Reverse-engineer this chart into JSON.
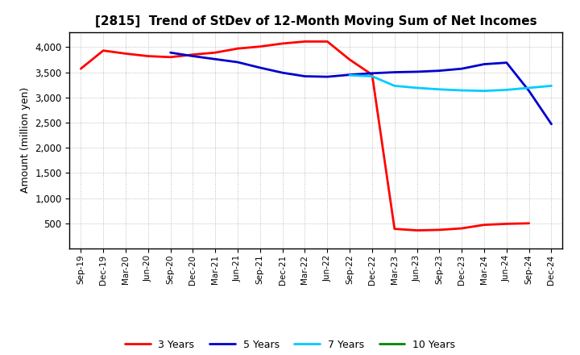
{
  "title": "[2815]  Trend of StDev of 12-Month Moving Sum of Net Incomes",
  "ylabel": "Amount (million yen)",
  "background_color": "#ffffff",
  "grid_color": "#999999",
  "x_labels": [
    "Sep-19",
    "Dec-19",
    "Mar-20",
    "Jun-20",
    "Sep-20",
    "Dec-20",
    "Mar-21",
    "Jun-21",
    "Sep-21",
    "Dec-21",
    "Mar-22",
    "Jun-22",
    "Sep-22",
    "Dec-22",
    "Mar-23",
    "Jun-23",
    "Sep-23",
    "Dec-23",
    "Mar-24",
    "Jun-24",
    "Sep-24",
    "Dec-24"
  ],
  "ylim": [
    0,
    4300
  ],
  "yticks": [
    500,
    1000,
    1500,
    2000,
    2500,
    3000,
    3500,
    4000
  ],
  "series": {
    "3 Years": {
      "color": "#ff0000",
      "values": [
        3570,
        3930,
        3870,
        3820,
        3800,
        3850,
        3890,
        3970,
        4010,
        4070,
        4110,
        4110,
        3750,
        3450,
        390,
        360,
        370,
        400,
        470,
        490,
        500,
        null
      ]
    },
    "5 Years": {
      "color": "#0000cc",
      "values": [
        null,
        null,
        null,
        null,
        3890,
        3820,
        3760,
        3700,
        3590,
        3490,
        3420,
        3410,
        3450,
        3480,
        3500,
        3510,
        3530,
        3570,
        3660,
        3690,
        3130,
        2470
      ]
    },
    "7 Years": {
      "color": "#00ccff",
      "values": [
        null,
        null,
        null,
        null,
        null,
        null,
        null,
        null,
        null,
        null,
        null,
        null,
        3440,
        3420,
        3230,
        3190,
        3160,
        3140,
        3130,
        3150,
        3190,
        3230
      ]
    },
    "10 Years": {
      "color": "#008800",
      "values": [
        null,
        null,
        null,
        null,
        null,
        null,
        null,
        null,
        null,
        null,
        null,
        null,
        null,
        null,
        null,
        null,
        null,
        null,
        null,
        null,
        null,
        null
      ]
    }
  },
  "legend_order": [
    "3 Years",
    "5 Years",
    "7 Years",
    "10 Years"
  ]
}
